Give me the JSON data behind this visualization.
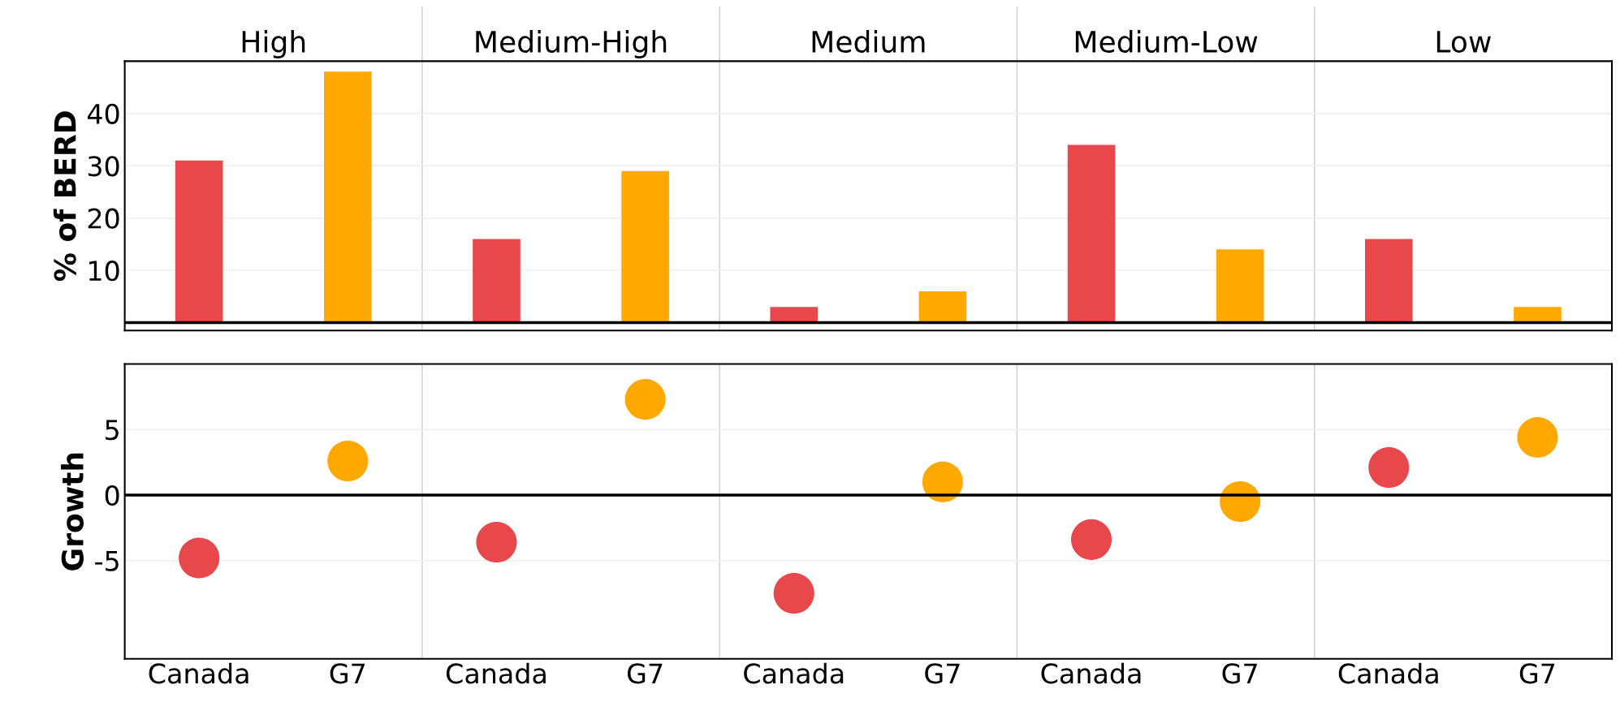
{
  "chart_data": [
    {
      "type": "bar",
      "ylabel": "% of BERD",
      "categories": [
        null,
        null,
        null,
        null,
        null,
        null,
        null,
        null,
        null,
        null
      ],
      "values": [
        31,
        48,
        16,
        29,
        3,
        6,
        34,
        14,
        16,
        3
      ],
      "colors": [
        "#e8474c",
        "#ffa800",
        "#e8474c",
        "#ffa800",
        "#e8474c",
        "#ffa800",
        "#e8474c",
        "#ffa800",
        "#e8474c",
        "#ffa800"
      ],
      "ylim": [
        -1.5,
        50
      ],
      "yticks": [
        10,
        20,
        30,
        40
      ],
      "grid": "y",
      "tick_labels": "y",
      "ref_lines": [
        {
          "axis": "y",
          "value": 0,
          "color": "#000000"
        }
      ],
      "annotations": [
        "High",
        "Medium-High",
        "Medium",
        "Medium-Low",
        "Low"
      ]
    },
    {
      "type": "scatter",
      "ylabel": "Growth",
      "categories": [
        "Canada",
        "G7",
        "Canada",
        "G7",
        "Canada",
        "G7",
        "Canada",
        "G7",
        "Canada",
        "G7"
      ],
      "values": [
        -4.8,
        2.6,
        -3.6,
        7.3,
        -7.5,
        1.0,
        -3.4,
        -0.5,
        2.1,
        4.4
      ],
      "colors": [
        "#e8474c",
        "#ffa800",
        "#e8474c",
        "#ffa800",
        "#e8474c",
        "#ffa800",
        "#e8474c",
        "#ffa800",
        "#e8474c",
        "#ffa800"
      ],
      "ylim": [
        -12.5,
        10
      ],
      "yticks": [
        {
          "value": -5,
          "label": "-5"
        },
        0,
        5
      ],
      "grid": "y",
      "marker": "circle",
      "ref_lines": [
        {
          "axis": "y",
          "value": 0,
          "color": "#000000"
        }
      ]
    }
  ]
}
